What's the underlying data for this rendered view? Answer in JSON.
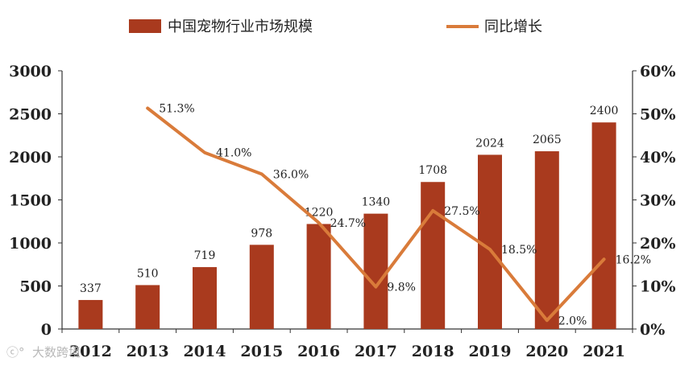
{
  "chart_data": {
    "type": "bar",
    "categories": [
      "2012",
      "2013",
      "2014",
      "2015",
      "2016",
      "2017",
      "2018",
      "2019",
      "2020",
      "2021"
    ],
    "series": [
      {
        "name": "中国宠物行业市场规模",
        "type": "bar",
        "axis": "left",
        "color": "#A93A1E",
        "values": [
          337,
          510,
          719,
          978,
          1220,
          1340,
          1708,
          2024,
          2065,
          2400
        ],
        "labels": [
          "337",
          "510",
          "719",
          "978",
          "1220",
          "1340",
          "1708",
          "2024",
          "2065",
          "2400"
        ]
      },
      {
        "name": "同比增长",
        "type": "line",
        "axis": "right",
        "color": "#D97B3A",
        "values": [
          null,
          51.3,
          41.0,
          36.0,
          24.7,
          9.8,
          27.5,
          18.5,
          2.0,
          16.2
        ],
        "labels": [
          "",
          "51.3%",
          "41.0%",
          "36.0%",
          "24.7%",
          "9.8%",
          "27.5%",
          "18.5%",
          "2.0%",
          "16.2%"
        ]
      }
    ],
    "y_left": {
      "min": 0,
      "max": 3000,
      "ticks": [
        "0",
        "500",
        "1000",
        "1500",
        "2000",
        "2500",
        "3000"
      ]
    },
    "y_right": {
      "min": 0,
      "max": 60,
      "ticks": [
        "0%",
        "10%",
        "20%",
        "30%",
        "40%",
        "50%",
        "60%"
      ]
    },
    "grid": false,
    "legend": "top"
  },
  "watermark": "大数跨境",
  "colors": {
    "bar": "#A93A1E",
    "line": "#D97B3A",
    "axis": "#333333"
  }
}
